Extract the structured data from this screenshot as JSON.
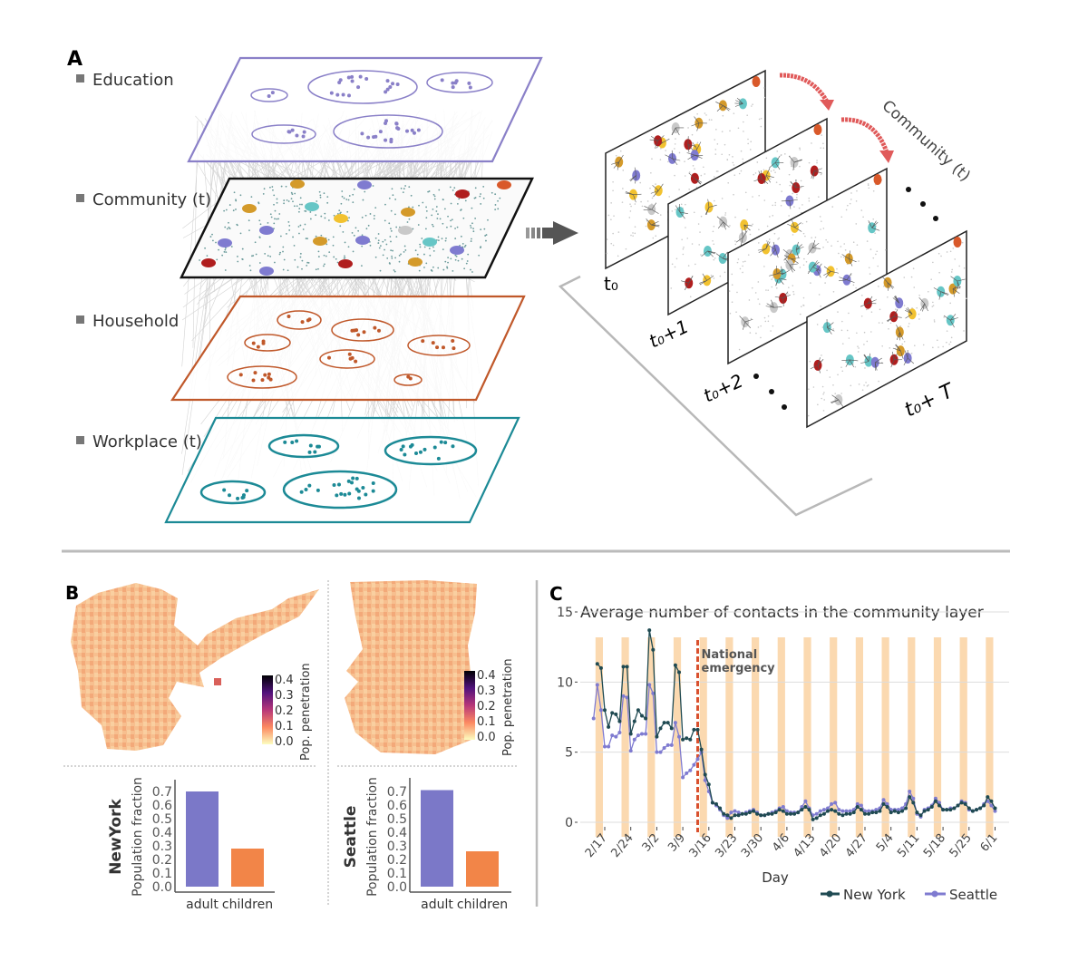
{
  "panel_labels": {
    "a": "A",
    "b": "B",
    "c": "C"
  },
  "panel_a": {
    "layers": [
      {
        "label": "Education",
        "color": "#8a80c8"
      },
      {
        "label": "Community (t)",
        "color": "#111111"
      },
      {
        "label": "Household",
        "color": "#c0582a"
      },
      {
        "label": "Workplace (t)",
        "color": "#1c8a96"
      }
    ],
    "time_labels": {
      "t0": "t₀",
      "t1": "t₀+1",
      "t2": "t₀+2",
      "tT": "t₀+ T"
    },
    "stack_label": "Community (t)",
    "node_colors": [
      "#7f7bd0",
      "#d49a2a",
      "#f2c230",
      "#66c6c6",
      "#b01e1e",
      "#c9c9c9",
      "#d9592a"
    ]
  },
  "panel_b": {
    "colorbar": {
      "label": "Pop. penetration",
      "ticks": [
        "0.4",
        "0.3",
        "0.2",
        "0.1",
        "0.0"
      ]
    },
    "charts": [
      {
        "city": "NewYork",
        "ylabel": "Population fraction",
        "ticks": [
          "0.7",
          "0.6",
          "0.5",
          "0.4",
          "0.3",
          "0.2",
          "0.1",
          "0.0"
        ],
        "categories": [
          "adult",
          "children"
        ],
        "values": [
          0.7,
          0.28
        ]
      },
      {
        "city": "Seattle",
        "ylabel": "Population fraction",
        "ticks": [
          "0.7",
          "0.6",
          "0.5",
          "0.4",
          "0.3",
          "0.2",
          "0.1",
          "0.0"
        ],
        "categories": [
          "adult",
          "children"
        ],
        "values": [
          0.71,
          0.26
        ]
      }
    ],
    "bar_colors": {
      "adult": "#7b78c8",
      "children": "#f28548"
    }
  },
  "chart_data": {
    "type": "line",
    "title": "Average number of contacts in the community layer",
    "xlabel": "Day",
    "ylabel": "",
    "ylim": [
      0,
      15
    ],
    "yticks": [
      "0",
      "5",
      "10",
      "15"
    ],
    "xticks": [
      "2/17",
      "2/24",
      "3/2",
      "3/9",
      "3/16",
      "3/23",
      "3/30",
      "4/6",
      "4/13",
      "4/20",
      "4/27",
      "5/4",
      "5/11",
      "5/18",
      "5/25",
      "6/1"
    ],
    "grid": true,
    "legend_placement": "bottom-right",
    "annotation": {
      "text_line1": "National",
      "text_line2": "emergency",
      "date": "3/13",
      "color": "#d9502e"
    },
    "weekend_bands": [
      "2/15",
      "2/22",
      "2/29",
      "3/7",
      "3/14",
      "3/21",
      "3/28",
      "4/4",
      "4/11",
      "4/18",
      "4/25",
      "5/2",
      "5/9",
      "5/16",
      "5/23",
      "5/30"
    ],
    "band_color": "#fbd9b0",
    "x": [
      "2/14",
      "2/15",
      "2/16",
      "2/17",
      "2/18",
      "2/19",
      "2/20",
      "2/21",
      "2/22",
      "2/23",
      "2/24",
      "2/25",
      "2/26",
      "2/27",
      "2/28",
      "2/29",
      "3/1",
      "3/2",
      "3/3",
      "3/4",
      "3/5",
      "3/6",
      "3/7",
      "3/8",
      "3/9",
      "3/10",
      "3/11",
      "3/12",
      "3/13",
      "3/14",
      "3/15",
      "3/16",
      "3/17",
      "3/18",
      "3/19",
      "3/20",
      "3/21",
      "3/22",
      "3/23",
      "3/24",
      "3/25",
      "3/26",
      "3/27",
      "3/28",
      "3/29",
      "3/30",
      "3/31",
      "4/1",
      "4/2",
      "4/3",
      "4/4",
      "4/5",
      "4/6",
      "4/7",
      "4/8",
      "4/9",
      "4/10",
      "4/11",
      "4/12",
      "4/13",
      "4/14",
      "4/15",
      "4/16",
      "4/17",
      "4/18",
      "4/19",
      "4/20",
      "4/21",
      "4/22",
      "4/23",
      "4/24",
      "4/25",
      "4/26",
      "4/27",
      "4/28",
      "4/29",
      "4/30",
      "5/1",
      "5/2",
      "5/3",
      "5/4",
      "5/5",
      "5/6",
      "5/7",
      "5/8",
      "5/9",
      "5/10",
      "5/11",
      "5/12",
      "5/13",
      "5/14",
      "5/15",
      "5/16",
      "5/17",
      "5/18",
      "5/19",
      "5/20",
      "5/21",
      "5/22",
      "5/23",
      "5/24",
      "5/25",
      "5/26",
      "5/27",
      "5/28",
      "5/29",
      "5/30",
      "5/31",
      "6/1"
    ],
    "series": [
      {
        "name": "New York",
        "color": "#1f4a52",
        "values": [
          null,
          11.3,
          11.0,
          8.0,
          6.8,
          7.8,
          7.7,
          7.2,
          11.1,
          11.1,
          6.3,
          7.2,
          8.0,
          7.6,
          7.4,
          13.7,
          12.3,
          6.1,
          6.7,
          7.1,
          7.1,
          6.7,
          11.2,
          10.7,
          5.9,
          6.0,
          5.9,
          6.6,
          6.6,
          5.2,
          3.4,
          2.7,
          1.4,
          1.3,
          1.0,
          0.6,
          0.5,
          0.3,
          0.5,
          0.5,
          0.6,
          0.6,
          0.7,
          0.8,
          0.6,
          0.5,
          0.5,
          0.6,
          0.6,
          0.7,
          0.9,
          0.8,
          0.6,
          0.6,
          0.6,
          0.7,
          0.9,
          1.1,
          0.9,
          0.2,
          0.3,
          0.5,
          0.6,
          0.8,
          0.9,
          0.8,
          0.6,
          0.5,
          0.6,
          0.6,
          0.7,
          1.1,
          0.9,
          0.6,
          0.6,
          0.7,
          0.7,
          0.8,
          1.3,
          1.1,
          0.7,
          0.8,
          0.7,
          0.8,
          1.0,
          1.8,
          1.4,
          0.7,
          0.5,
          0.8,
          0.9,
          1.1,
          1.5,
          1.2,
          0.9,
          0.9,
          0.9,
          1.0,
          1.2,
          1.4,
          1.3,
          1.0,
          0.8,
          0.9,
          1.0,
          1.2,
          1.8,
          1.5,
          1.0
        ]
      },
      {
        "name": "Seattle",
        "color": "#7f7bd0",
        "values": [
          7.4,
          9.8,
          8.0,
          5.4,
          5.4,
          6.2,
          6.1,
          6.4,
          9.0,
          8.9,
          5.1,
          5.9,
          6.2,
          6.3,
          6.3,
          9.8,
          9.2,
          5.0,
          5.0,
          5.3,
          5.5,
          5.5,
          7.1,
          6.1,
          3.2,
          3.5,
          3.7,
          4.1,
          4.5,
          5.0,
          3.0,
          2.2,
          1.4,
          1.2,
          0.9,
          0.5,
          0.3,
          0.7,
          0.8,
          0.7,
          0.6,
          0.7,
          0.8,
          0.9,
          0.7,
          0.5,
          0.5,
          0.6,
          0.7,
          0.8,
          1.0,
          1.1,
          0.8,
          0.7,
          0.7,
          0.7,
          1.1,
          1.5,
          1.0,
          0.5,
          0.6,
          0.8,
          0.9,
          1.0,
          1.3,
          1.4,
          0.9,
          0.8,
          0.8,
          0.8,
          0.9,
          1.3,
          1.2,
          0.8,
          0.8,
          0.8,
          0.9,
          1.0,
          1.6,
          1.3,
          0.9,
          0.9,
          0.9,
          1.0,
          1.3,
          2.2,
          1.7,
          0.6,
          0.4,
          0.9,
          1.0,
          1.2,
          1.7,
          1.4,
          0.9,
          0.9,
          1.0,
          1.0,
          1.2,
          1.5,
          1.4,
          0.9,
          0.8,
          0.9,
          1.0,
          1.3,
          1.5,
          1.2,
          0.8
        ]
      }
    ]
  }
}
